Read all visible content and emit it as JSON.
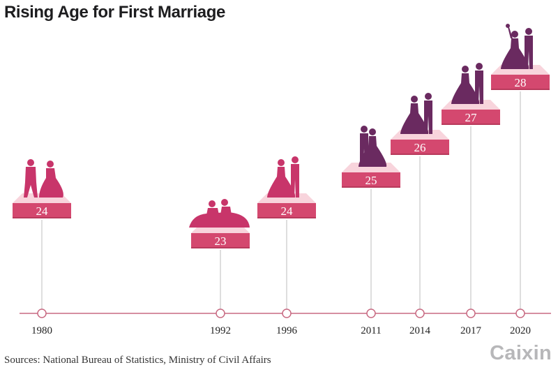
{
  "title": "Rising Age for First Marriage",
  "source": "Sources: National Bureau of Statistics, Ministry of Civil Affairs",
  "brand": "Caixin",
  "colors": {
    "accent": "#d4486f",
    "accent_dark": "#b83a5c",
    "platform": "#f8d4dc",
    "stem": "#c9c9c9",
    "timeline": "#c86a82",
    "silhouette_pink": "#c8356a",
    "silhouette_purple": "#6a2a60"
  },
  "chart_data": {
    "type": "timeline",
    "title": "Rising Age for First Marriage",
    "xlabel": "",
    "ylabel": "",
    "series": [
      {
        "values": [
          24,
          23,
          24,
          25,
          26,
          27,
          28
        ]
      }
    ],
    "x": [
      1980,
      1992,
      1996,
      2011,
      2014,
      2017,
      2020
    ],
    "x_labels": [
      "1980",
      "1992",
      "1996",
      "2011",
      "2014",
      "2017",
      "2020"
    ],
    "value_labels": [
      "24",
      "23",
      "24",
      "25",
      "26",
      "27",
      "28"
    ],
    "icons": [
      "couple-running-icon",
      "couple-sitting-icon",
      "couple-standing-icon",
      "couple-embrace-icon",
      "couple-formal-icon",
      "couple-formal-icon",
      "couple-bouquet-icon"
    ],
    "grid": false
  }
}
